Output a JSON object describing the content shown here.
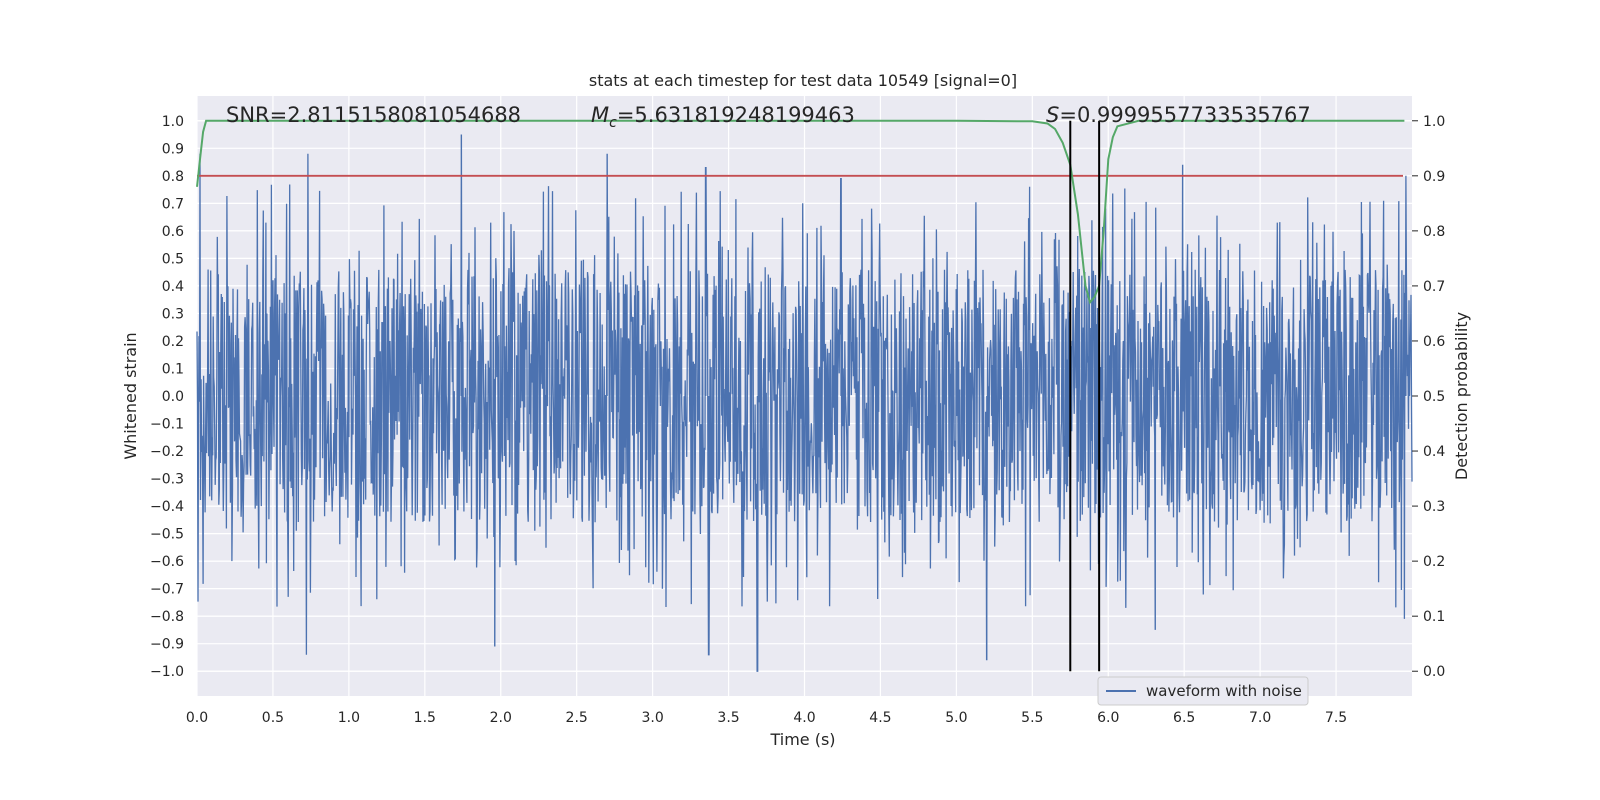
{
  "chart_data": {
    "type": "line",
    "title": "stats at each timestep for test data 10549 [signal=0]",
    "xlabel": "Time (s)",
    "ylabel": "Whitened strain",
    "y2label": "Detection probability",
    "xlim": [
      0.0,
      8.0
    ],
    "ylim": [
      -1.09,
      1.09
    ],
    "y2lim": [
      -0.045,
      1.045
    ],
    "x_ticks": [
      "0.0",
      "0.5",
      "1.0",
      "1.5",
      "2.0",
      "2.5",
      "3.0",
      "3.5",
      "4.0",
      "4.5",
      "5.0",
      "5.5",
      "6.0",
      "6.5",
      "7.0",
      "7.5"
    ],
    "y_ticks": [
      "1.0",
      "0.9",
      "0.8",
      "0.7",
      "0.6",
      "0.5",
      "0.4",
      "0.3",
      "0.2",
      "0.1",
      "0.0",
      "−0.1",
      "−0.2",
      "−0.3",
      "−0.4",
      "−0.5",
      "−0.6",
      "−0.7",
      "−0.8",
      "−0.9",
      "−1.0"
    ],
    "y2_ticks": [
      "1.0",
      "0.9",
      "0.8",
      "0.7",
      "0.6",
      "0.5",
      "0.4",
      "0.3",
      "0.2",
      "0.1",
      "0.0"
    ],
    "grid": true,
    "legend_position": "lower-right",
    "annotations": {
      "snr_label": "SNR=2.8115158081054688",
      "mc_label_main": "M",
      "mc_label_sub": "c",
      "mc_label_value": "=5.631819248199463",
      "s_label_main": "S",
      "s_label_value": "=0.9999557733535767"
    },
    "series": [
      {
        "name": "waveform with noise",
        "kind": "noise-waveform",
        "color": "#4c72b0",
        "x_range": [
          0.0,
          8.0
        ],
        "typical_envelope": [
          -0.4,
          0.4
        ],
        "peaks_positive": [
          [
            0.02,
            0.88
          ],
          [
            0.73,
            0.88
          ],
          [
            1.74,
            0.95
          ],
          [
            2.7,
            0.88
          ],
          [
            3.35,
            0.83
          ],
          [
            4.24,
            0.79
          ],
          [
            6.49,
            0.84
          ],
          [
            7.96,
            0.8
          ]
        ],
        "peaks_negative": [
          [
            0.72,
            -0.94
          ],
          [
            1.96,
            -0.91
          ],
          [
            3.37,
            -0.94
          ],
          [
            3.69,
            -1.0
          ],
          [
            5.2,
            -0.96
          ],
          [
            6.31,
            -0.85
          ],
          [
            7.95,
            -0.81
          ]
        ]
      },
      {
        "kind": "detection-probability",
        "color": "#55a868",
        "axis": "right",
        "x": [
          0.0,
          0.02,
          0.04,
          0.06,
          0.2,
          1.0,
          2.0,
          3.0,
          4.0,
          5.0,
          5.5,
          5.6,
          5.65,
          5.7,
          5.75,
          5.8,
          5.85,
          5.88,
          5.91,
          5.94,
          5.97,
          6.0,
          6.03,
          6.06,
          6.2,
          7.0,
          7.95
        ],
        "y": [
          0.88,
          0.93,
          0.98,
          1.0,
          1.0,
          1.0,
          1.0,
          1.0,
          1.0,
          1.0,
          0.999,
          0.995,
          0.985,
          0.96,
          0.92,
          0.83,
          0.7,
          0.67,
          0.68,
          0.7,
          0.8,
          0.93,
          0.97,
          0.99,
          1.0,
          1.0,
          1.0
        ]
      },
      {
        "kind": "threshold",
        "color": "#c44e52",
        "axis": "right",
        "value": 0.9
      }
    ],
    "vertical_markers": {
      "color": "#000000",
      "x": [
        5.75,
        5.94
      ],
      "y2_range": [
        0.0,
        1.0
      ]
    }
  }
}
